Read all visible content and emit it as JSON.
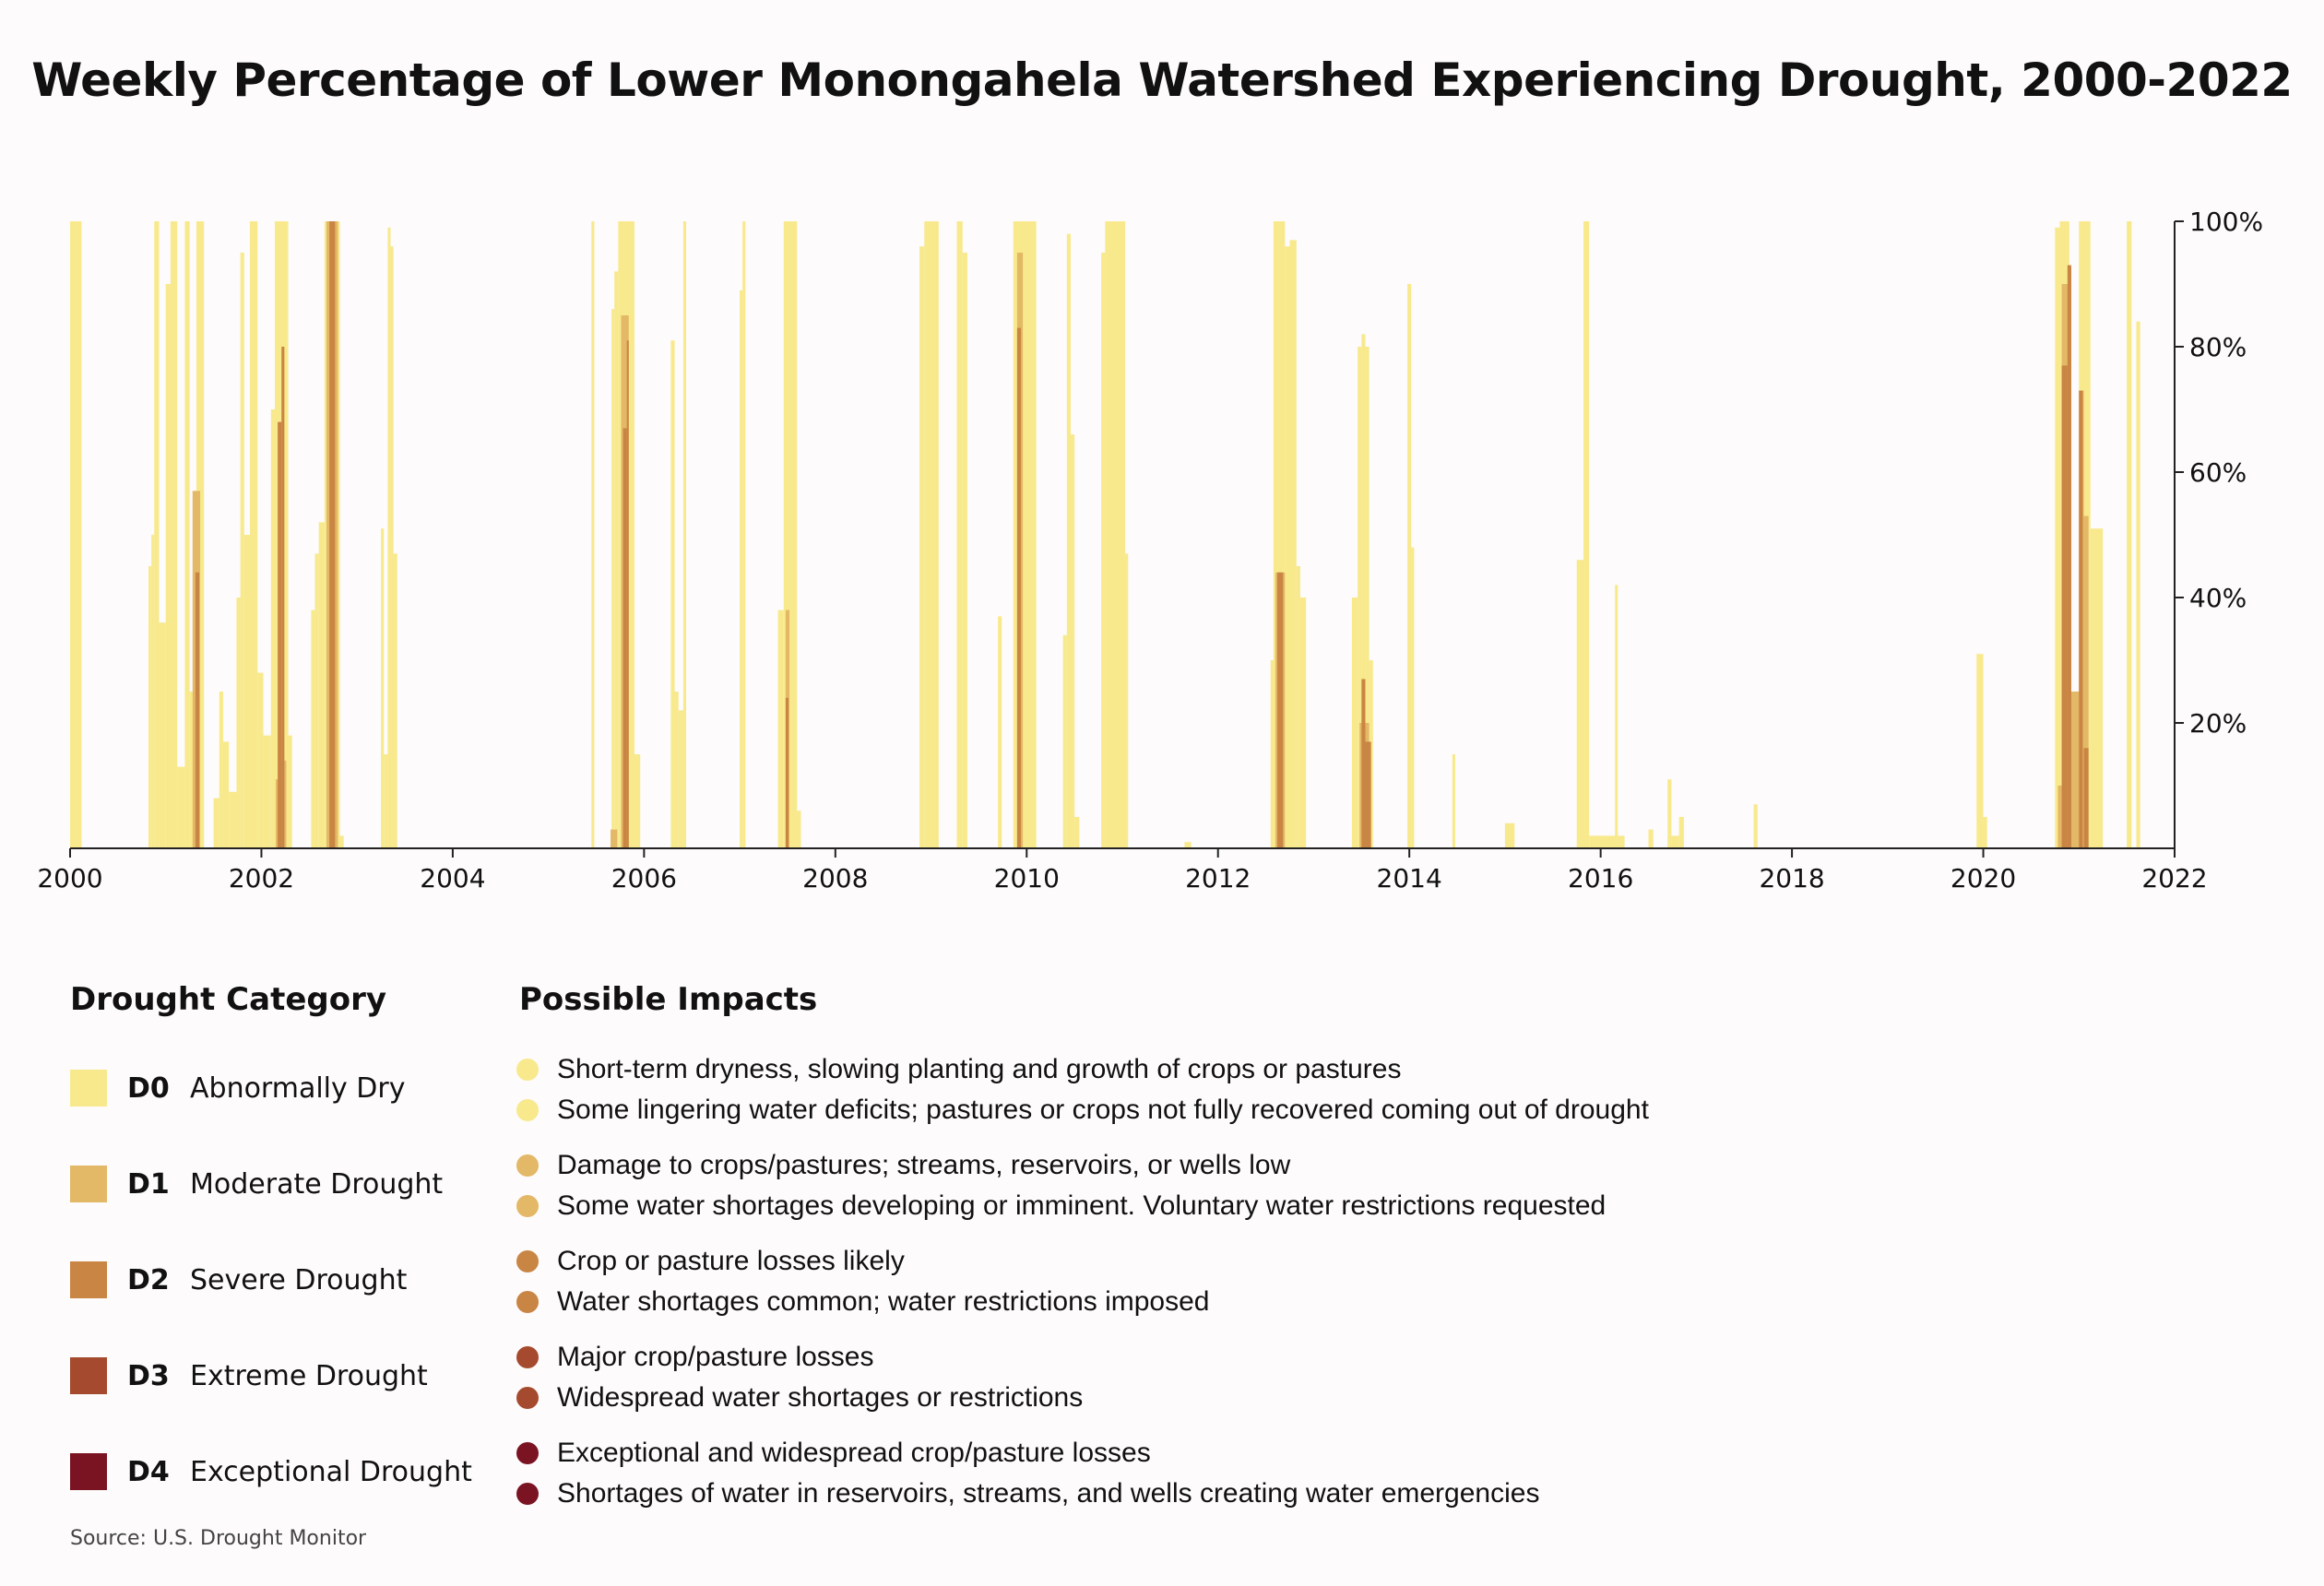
{
  "title": "Weekly Percentage of Lower Monongahela Watershed Experiencing Drought, 2000-2022",
  "source": "Source: U.S. Drought Monitor",
  "legend": {
    "category_heading": "Drought Category",
    "impacts_heading": "Possible Impacts",
    "categories": [
      {
        "code": "D0",
        "label": "Abnormally Dry",
        "color": "#f8e98d",
        "impacts": [
          "Short-term dryness, slowing planting and growth of crops or pastures",
          "Some lingering water deficits; pastures or crops not fully recovered coming out of drought"
        ]
      },
      {
        "code": "D1",
        "label": "Moderate Drought",
        "color": "#e3b866",
        "impacts": [
          "Damage to crops/pastures; streams, reservoirs, or wells low",
          "Some water shortages developing or imminent. Voluntary water restrictions requested"
        ]
      },
      {
        "code": "D2",
        "label": "Severe Drought",
        "color": "#c98543",
        "impacts": [
          "Crop or pasture losses likely",
          "Water shortages common; water restrictions imposed"
        ]
      },
      {
        "code": "D3",
        "label": "Extreme Drought",
        "color": "#a54a2e",
        "impacts": [
          "Major crop/pasture losses",
          "Widespread water shortages or restrictions"
        ]
      },
      {
        "code": "D4",
        "label": "Exceptional Drought",
        "color": "#7a1423",
        "impacts": [
          "Exceptional and widespread crop/pasture losses",
          "Shortages of water in reservoirs, streams, and wells creating water emergencies"
        ]
      }
    ]
  },
  "chart_data": {
    "type": "bar",
    "title": "Weekly Percentage of Lower Monongahela Watershed Experiencing Drought, 2000-2022",
    "xlabel": "",
    "ylabel": "",
    "xlim": [
      2000,
      2022
    ],
    "ylim": [
      0,
      100
    ],
    "x_ticks": [
      2000,
      2002,
      2004,
      2006,
      2008,
      2010,
      2012,
      2014,
      2016,
      2018,
      2020,
      2022
    ],
    "x_tick_labels": [
      "2000",
      "2002",
      "2004",
      "2006",
      "2008",
      "2010",
      "2012",
      "2014",
      "2016",
      "2018",
      "2020",
      "2022"
    ],
    "y_ticks": [
      20,
      40,
      60,
      80,
      100
    ],
    "y_tick_labels": [
      "20%",
      "40%",
      "60%",
      "80%",
      "100%"
    ],
    "y_axis_side": "right",
    "grid": false,
    "series": [
      {
        "name": "D0",
        "color": "#f8e98d",
        "segments": [
          [
            2000.0,
            2000.12,
            100
          ],
          [
            2000.82,
            2000.85,
            45
          ],
          [
            2000.85,
            2000.88,
            50
          ],
          [
            2000.88,
            2000.93,
            100
          ],
          [
            2000.93,
            2001.0,
            36
          ],
          [
            2001.0,
            2001.05,
            90
          ],
          [
            2001.05,
            2001.12,
            100
          ],
          [
            2001.12,
            2001.2,
            13
          ],
          [
            2001.2,
            2001.25,
            100
          ],
          [
            2001.25,
            2001.32,
            25
          ],
          [
            2001.32,
            2001.4,
            100
          ],
          [
            2001.5,
            2001.56,
            8
          ],
          [
            2001.56,
            2001.6,
            25
          ],
          [
            2001.6,
            2001.66,
            17
          ],
          [
            2001.66,
            2001.74,
            9
          ],
          [
            2001.74,
            2001.78,
            40
          ],
          [
            2001.78,
            2001.82,
            95
          ],
          [
            2001.82,
            2001.88,
            50
          ],
          [
            2001.88,
            2001.96,
            100
          ],
          [
            2001.96,
            2002.02,
            28
          ],
          [
            2002.02,
            2002.1,
            18
          ],
          [
            2002.1,
            2002.14,
            70
          ],
          [
            2002.14,
            2002.28,
            100
          ],
          [
            2002.28,
            2002.32,
            18
          ],
          [
            2002.52,
            2002.56,
            38
          ],
          [
            2002.56,
            2002.6,
            47
          ],
          [
            2002.6,
            2002.66,
            52
          ],
          [
            2002.66,
            2002.82,
            100
          ],
          [
            2002.82,
            2002.86,
            2
          ],
          [
            2003.25,
            2003.28,
            51
          ],
          [
            2003.28,
            2003.32,
            15
          ],
          [
            2003.32,
            2003.35,
            99
          ],
          [
            2003.35,
            2003.38,
            96
          ],
          [
            2003.38,
            2003.42,
            47
          ],
          [
            2005.45,
            2005.48,
            100
          ],
          [
            2005.66,
            2005.69,
            86
          ],
          [
            2005.69,
            2005.73,
            92
          ],
          [
            2005.73,
            2005.9,
            100
          ],
          [
            2005.9,
            2005.96,
            15
          ],
          [
            2006.28,
            2006.32,
            81
          ],
          [
            2006.32,
            2006.36,
            25
          ],
          [
            2006.36,
            2006.41,
            22
          ],
          [
            2006.41,
            2006.44,
            100
          ],
          [
            2007.0,
            2007.03,
            89
          ],
          [
            2007.03,
            2007.06,
            100
          ],
          [
            2007.4,
            2007.46,
            38
          ],
          [
            2007.46,
            2007.6,
            100
          ],
          [
            2007.6,
            2007.64,
            6
          ],
          [
            2008.88,
            2008.93,
            96
          ],
          [
            2008.93,
            2009.08,
            100
          ],
          [
            2009.27,
            2009.33,
            100
          ],
          [
            2009.33,
            2009.38,
            95
          ],
          [
            2009.7,
            2009.74,
            37
          ],
          [
            2009.86,
            2010.1,
            100
          ],
          [
            2010.38,
            2010.42,
            34
          ],
          [
            2010.42,
            2010.46,
            98
          ],
          [
            2010.46,
            2010.5,
            66
          ],
          [
            2010.5,
            2010.55,
            5
          ],
          [
            2010.78,
            2010.82,
            95
          ],
          [
            2010.82,
            2011.03,
            100
          ],
          [
            2011.03,
            2011.06,
            47
          ],
          [
            2011.65,
            2011.72,
            1
          ],
          [
            2012.55,
            2012.58,
            30
          ],
          [
            2012.58,
            2012.7,
            100
          ],
          [
            2012.7,
            2012.75,
            96
          ],
          [
            2012.75,
            2012.82,
            97
          ],
          [
            2012.82,
            2012.86,
            45
          ],
          [
            2012.86,
            2012.92,
            40
          ],
          [
            2013.4,
            2013.46,
            40
          ],
          [
            2013.46,
            2013.5,
            80
          ],
          [
            2013.5,
            2013.54,
            82
          ],
          [
            2013.54,
            2013.58,
            80
          ],
          [
            2013.58,
            2013.62,
            30
          ],
          [
            2013.98,
            2014.02,
            90
          ],
          [
            2014.02,
            2014.05,
            48
          ],
          [
            2014.45,
            2014.48,
            15
          ],
          [
            2015.0,
            2015.1,
            4
          ],
          [
            2015.75,
            2015.82,
            46
          ],
          [
            2015.82,
            2015.88,
            100
          ],
          [
            2015.88,
            2016.18,
            2
          ],
          [
            2016.15,
            2016.18,
            42
          ],
          [
            2016.18,
            2016.25,
            2
          ],
          [
            2016.5,
            2016.55,
            3
          ],
          [
            2016.7,
            2016.74,
            11
          ],
          [
            2016.74,
            2016.82,
            2
          ],
          [
            2016.82,
            2016.87,
            5
          ],
          [
            2017.6,
            2017.64,
            7
          ],
          [
            2019.93,
            2020.0,
            31
          ],
          [
            2020.0,
            2020.04,
            5
          ],
          [
            2020.75,
            2020.8,
            99
          ],
          [
            2020.8,
            2020.9,
            100
          ],
          [
            2020.9,
            2021.0,
            25
          ],
          [
            2021.0,
            2021.12,
            100
          ],
          [
            2021.12,
            2021.25,
            51
          ],
          [
            2021.5,
            2021.55,
            100
          ],
          [
            2021.6,
            2021.64,
            84
          ]
        ]
      },
      {
        "name": "D1",
        "color": "#e3b866",
        "segments": [
          [
            2001.28,
            2001.36,
            57
          ],
          [
            2002.15,
            2002.2,
            11
          ],
          [
            2002.2,
            2002.26,
            14
          ],
          [
            2002.68,
            2002.8,
            100
          ],
          [
            2005.65,
            2005.72,
            3
          ],
          [
            2005.76,
            2005.84,
            85
          ],
          [
            2007.48,
            2007.52,
            38
          ],
          [
            2009.9,
            2009.96,
            95
          ],
          [
            2012.6,
            2012.7,
            44
          ],
          [
            2013.48,
            2013.58,
            20
          ],
          [
            2020.78,
            2020.82,
            10
          ],
          [
            2020.82,
            2020.9,
            90
          ],
          [
            2020.9,
            2021.0,
            25
          ],
          [
            2021.0,
            2021.05,
            73
          ],
          [
            2021.05,
            2021.1,
            53
          ]
        ]
      },
      {
        "name": "D2",
        "color": "#c98543",
        "segments": [
          [
            2001.31,
            2001.35,
            44
          ],
          [
            2002.17,
            2002.21,
            68
          ],
          [
            2002.21,
            2002.24,
            80
          ],
          [
            2002.71,
            2002.77,
            100
          ],
          [
            2005.78,
            2005.82,
            67
          ],
          [
            2005.82,
            2005.84,
            81
          ],
          [
            2007.48,
            2007.51,
            24
          ],
          [
            2009.9,
            2009.94,
            83
          ],
          [
            2012.62,
            2012.68,
            44
          ],
          [
            2013.5,
            2013.54,
            27
          ],
          [
            2013.54,
            2013.6,
            17
          ],
          [
            2020.82,
            2020.88,
            77
          ],
          [
            2020.88,
            2020.92,
            93
          ],
          [
            2021.0,
            2021.04,
            73
          ],
          [
            2021.05,
            2021.1,
            16
          ]
        ]
      },
      {
        "name": "D3",
        "color": "#a54a2e",
        "segments": []
      },
      {
        "name": "D4",
        "color": "#7a1423",
        "segments": []
      }
    ]
  }
}
